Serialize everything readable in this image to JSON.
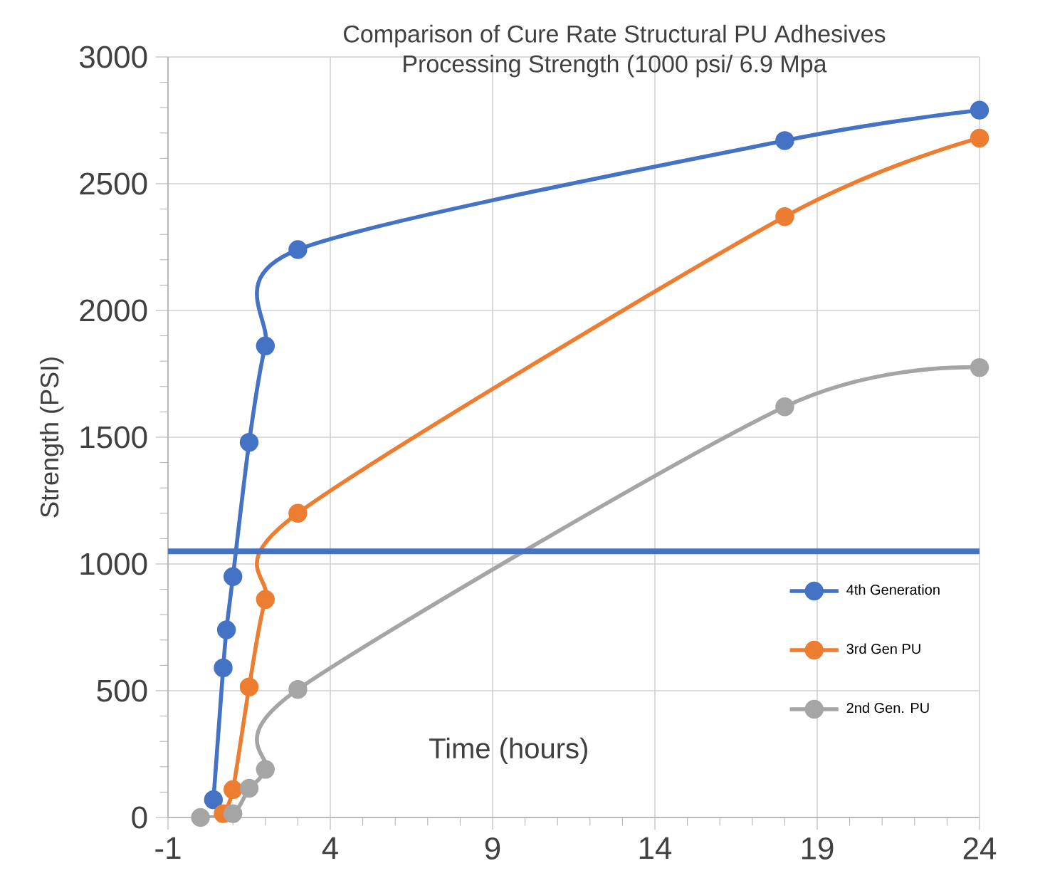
{
  "chart_data": {
    "type": "line",
    "title": "Comparison of Cure Rate Structural PU Adhesives",
    "subtitle": "Processing Strength (1000 psi/ 6.9 Mpa",
    "xlabel": "Time (hours)",
    "ylabel": "Strength (PSI)",
    "xlim": [
      -1,
      24
    ],
    "xticks": [
      -1,
      4,
      9,
      14,
      19,
      24
    ],
    "ylim": [
      0,
      3000
    ],
    "yticks": [
      0,
      500,
      1000,
      1500,
      2000,
      2500,
      3000
    ],
    "grid": true,
    "legend": "right",
    "marker": "circle",
    "line_style": "solid",
    "series": [
      {
        "name": "4th Generation",
        "color": "#4472c4",
        "x": [
          0.4,
          0.7,
          0.8,
          1,
          1.5,
          2,
          3,
          18,
          24
        ],
        "values": [
          70,
          590,
          740,
          950,
          1480,
          1860,
          2240,
          2670,
          2790
        ]
      },
      {
        "name": "3rd Gen PU",
        "color": "#ed7d31",
        "x": [
          0.7,
          1,
          1.5,
          2,
          3,
          18,
          24
        ],
        "values": [
          15,
          110,
          515,
          860,
          1200,
          2370,
          2680
        ]
      },
      {
        "name": "2nd Gen. PU",
        "color": "#a5a5a5",
        "x": [
          0,
          1,
          1.5,
          2,
          3,
          18,
          24
        ],
        "values": [
          0,
          15,
          115,
          190,
          505,
          1620,
          1775
        ]
      }
    ],
    "ref_lines": [
      {
        "axis": "y",
        "value": 1050,
        "color": "#4472c4"
      }
    ]
  }
}
